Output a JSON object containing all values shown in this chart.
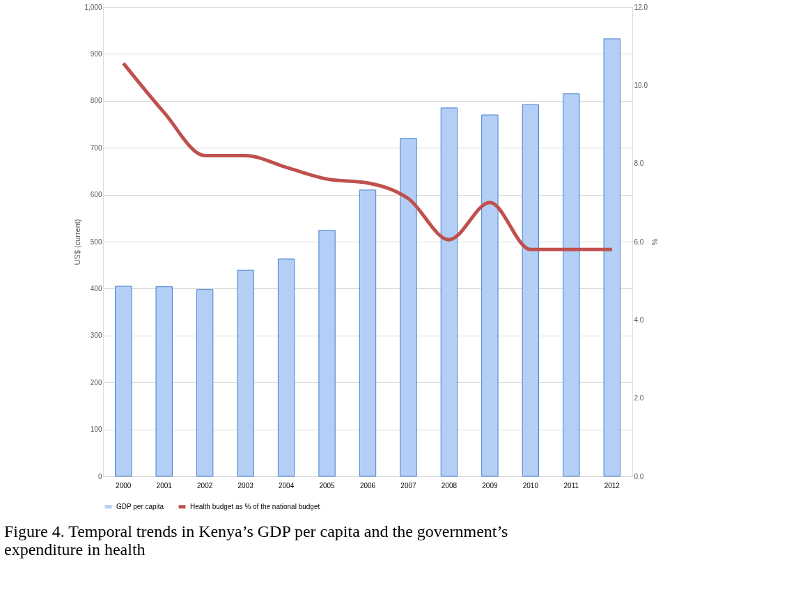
{
  "chart_data": {
    "type": "bar",
    "categories": [
      "2000",
      "2001",
      "2002",
      "2003",
      "2004",
      "2005",
      "2006",
      "2007",
      "2008",
      "2009",
      "2010",
      "2011",
      "2012"
    ],
    "series": [
      {
        "name": "GDP per capita",
        "color": "#b3cff5",
        "values": [
          405,
          404,
          398,
          439,
          463,
          524,
          610,
          720,
          785,
          770,
          792,
          815,
          932
        ]
      },
      {
        "name": "Health budget as % of the national budget",
        "type": "line",
        "axis": "y2",
        "color": "#c0504d",
        "values": [
          10.56,
          9.3,
          8.2,
          8.2,
          7.9,
          7.6,
          7.5,
          7.1,
          6.05,
          7.0,
          5.8,
          5.8,
          5.8
        ]
      }
    ],
    "ylabel": "US$ (current)",
    "y2label": "%",
    "ylim": [
      0,
      1000
    ],
    "yticks": [
      0,
      100,
      200,
      300,
      400,
      500,
      600,
      700,
      800,
      900,
      {
        "value": 1000,
        "label": "1,000"
      }
    ],
    "y2lim": [
      0,
      12
    ],
    "y2ticks": [
      {
        "value": 0,
        "label": "0.0"
      },
      {
        "value": 2,
        "label": "2.0"
      },
      {
        "value": 4,
        "label": "4.0"
      },
      {
        "value": 6,
        "label": "6.0"
      },
      {
        "value": 8,
        "label": "8.0"
      },
      {
        "value": 10,
        "label": "10.0"
      },
      {
        "value": 12,
        "label": "12.0"
      }
    ],
    "grid": "y",
    "legend": "bottom",
    "marker": "none",
    "line_style": "solid",
    "annotations": [
      "Figure 4. Temporal trends in Kenya’s GDP per capita and the government’s expenditure in health"
    ]
  }
}
